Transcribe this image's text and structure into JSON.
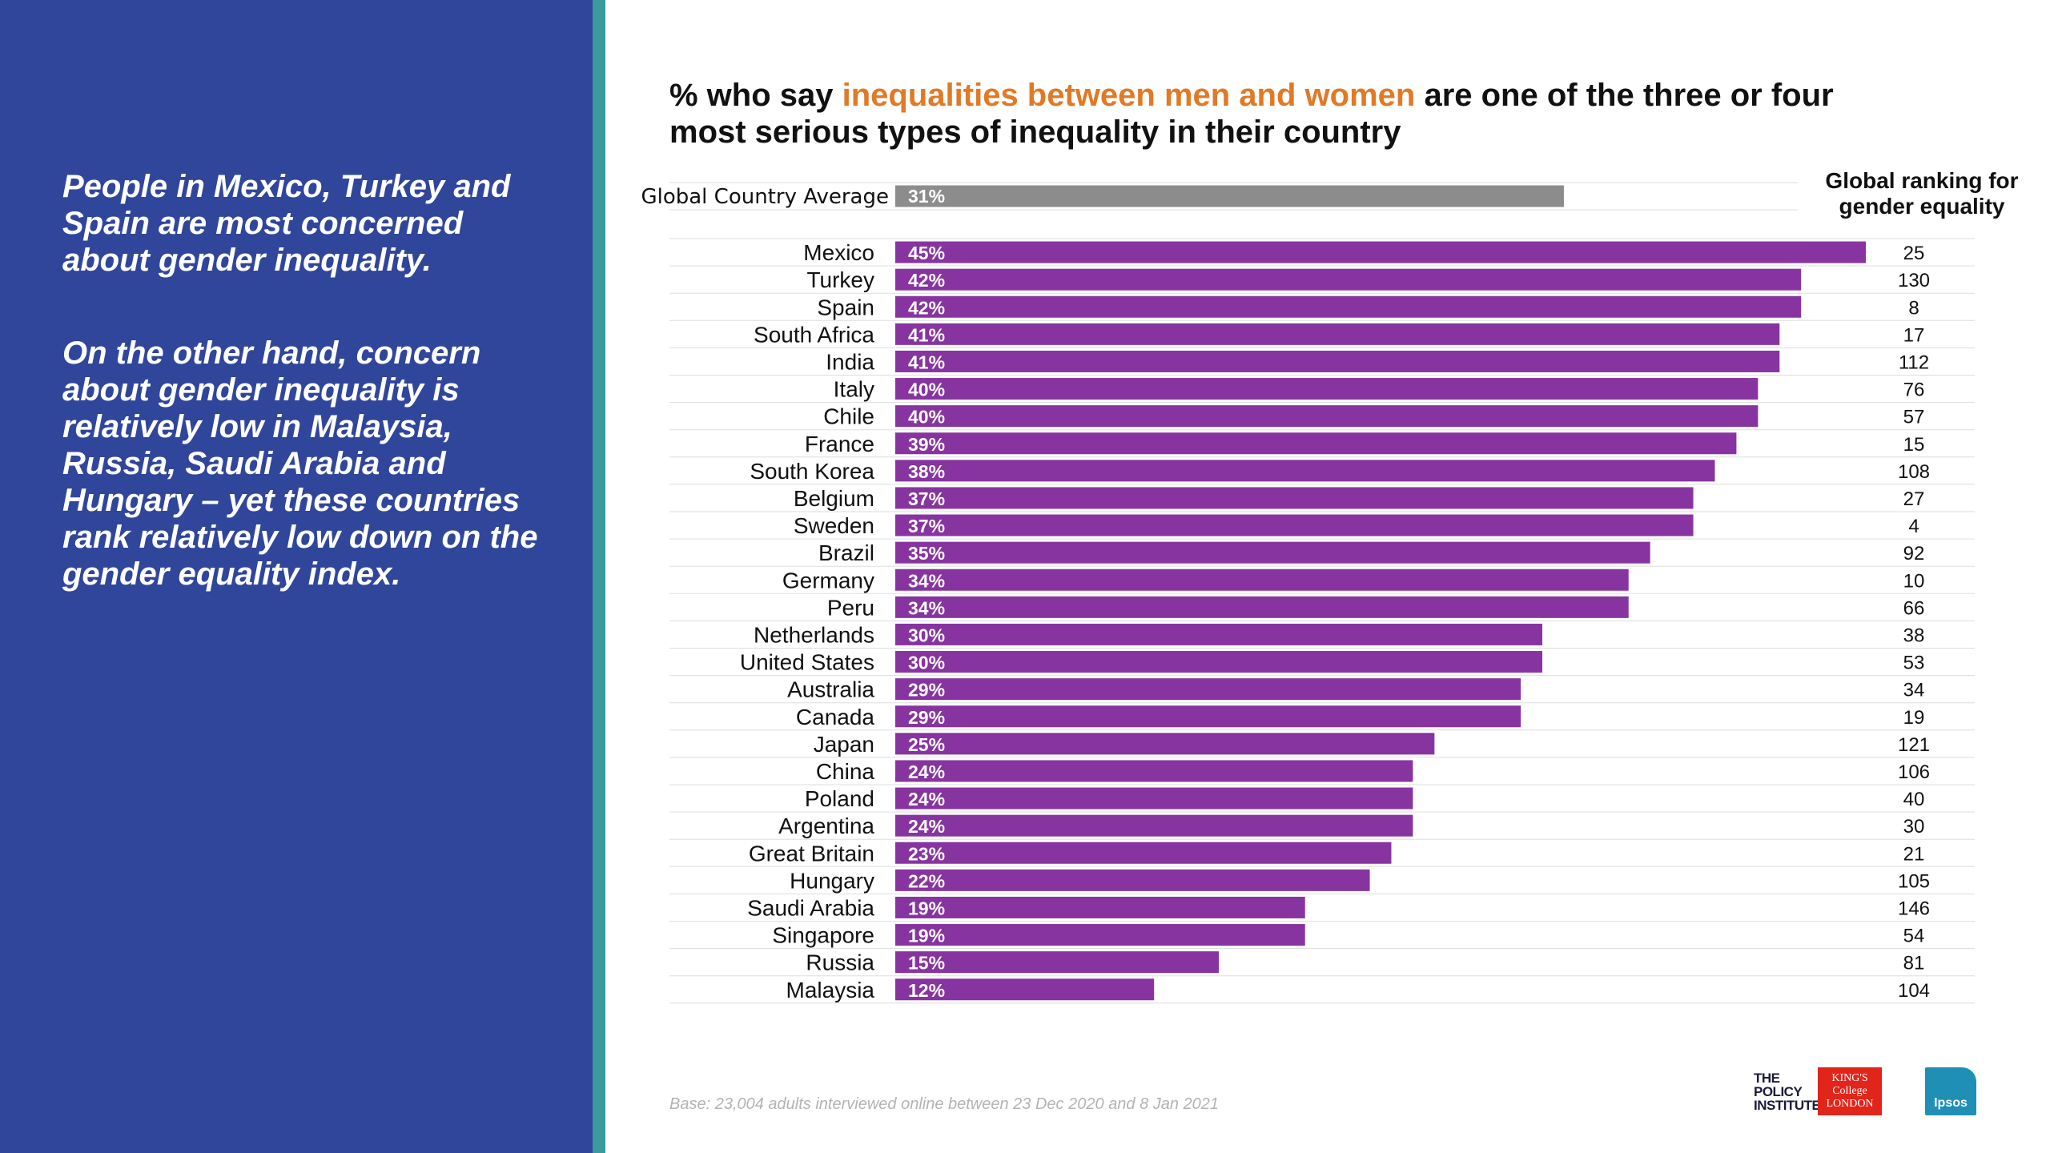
{
  "panel": {
    "paragraph_1": "People in Mexico, Turkey and Spain are most concerned about gender inequality.",
    "paragraph_2": "On the other hand, concern about gender inequality is relatively low in Malaysia, Russia, Saudi Arabia and Hungary – yet these countries rank relatively low down on the gender equality index.",
    "bg_color": "#30469b",
    "stripe_color": "#3d9a9c"
  },
  "title": {
    "prefix": "% who say ",
    "highlight": "inequalities between men and women",
    "suffix": " are one of the three or four most serious types of inequality in their country",
    "highlight_color": "#e07a26"
  },
  "ranking_header": "Global ranking for gender equality",
  "base_note": "Base: 23,004 adults interviewed online between 23 Dec 2020 and 8 Jan 2021",
  "logos": {
    "policy_institute": "THE POLICY INSTITUTE",
    "kings": "KING'S College LONDON",
    "ipsos": "Ipsos"
  },
  "chart_data": {
    "type": "bar",
    "orientation": "horizontal",
    "title": "% who say inequalities between men and women are one of the three or four most serious types of inequality in their country",
    "xlim": [
      0,
      45
    ],
    "average": {
      "label": "Global Country Average",
      "value": 31,
      "value_label": "31%",
      "color": "#8c8c8c"
    },
    "bar_color": "#8734a0",
    "categories": [
      "Mexico",
      "Turkey",
      "Spain",
      "South Africa",
      "India",
      "Italy",
      "Chile",
      "France",
      "South Korea",
      "Belgium",
      "Sweden",
      "Brazil",
      "Germany",
      "Peru",
      "Netherlands",
      "United States",
      "Australia",
      "Canada",
      "Japan",
      "China",
      "Poland",
      "Argentina",
      "Great Britain",
      "Hungary",
      "Saudi Arabia",
      "Singapore",
      "Russia",
      "Malaysia"
    ],
    "values": [
      45,
      42,
      42,
      41,
      41,
      40,
      40,
      39,
      38,
      37,
      37,
      35,
      34,
      34,
      30,
      30,
      29,
      29,
      25,
      24,
      24,
      24,
      23,
      22,
      19,
      19,
      15,
      12
    ],
    "value_labels": [
      "45%",
      "42%",
      "42%",
      "41%",
      "41%",
      "40%",
      "40%",
      "39%",
      "38%",
      "37%",
      "37%",
      "35%",
      "34%",
      "34%",
      "30%",
      "30%",
      "29%",
      "29%",
      "25%",
      "24%",
      "24%",
      "24%",
      "23%",
      "22%",
      "19%",
      "19%",
      "15%",
      "12%"
    ],
    "rankings": [
      "25",
      "130",
      "8",
      "17",
      "112",
      "76",
      "57",
      "15",
      "108",
      "27",
      "4",
      "92",
      "10",
      "66",
      "38",
      "53",
      "34",
      "19",
      "121",
      "106",
      "40",
      "30",
      "21",
      "105",
      "146",
      "54",
      "81",
      "104"
    ]
  }
}
